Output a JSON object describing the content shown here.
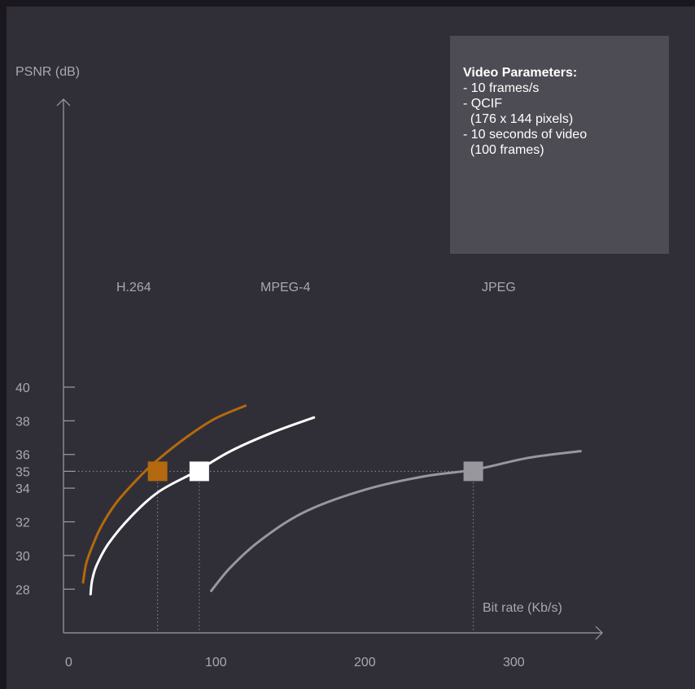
{
  "chart_data": {
    "type": "line",
    "ylabel": "PSNR (dB)",
    "xlabel": "Bit rate (Kb/s)",
    "xlim": [
      0,
      350
    ],
    "ylim": [
      26,
      42
    ],
    "x_ticks": [
      0,
      100,
      200,
      300
    ],
    "y_ticks": [
      28,
      30,
      32,
      34,
      35,
      36,
      38,
      40
    ],
    "reference_psnr": 35,
    "series": [
      {
        "name": "H.264",
        "color": "#b4690e",
        "points": [
          [
            11,
            28.4
          ],
          [
            13,
            29.5
          ],
          [
            17,
            30.5
          ],
          [
            23,
            31.7
          ],
          [
            33,
            33.1
          ],
          [
            47,
            34.5
          ],
          [
            60,
            35.6
          ],
          [
            80,
            37.0
          ],
          [
            99,
            38.1
          ],
          [
            120,
            38.9
          ]
        ],
        "marker": [
          61,
          35
        ]
      },
      {
        "name": "MPEG-4",
        "color": "#ffffff",
        "points": [
          [
            16,
            27.7
          ],
          [
            17,
            28.5
          ],
          [
            20,
            29.4
          ],
          [
            28,
            30.7
          ],
          [
            43,
            32.3
          ],
          [
            62,
            33.8
          ],
          [
            87,
            35.0
          ],
          [
            110,
            36.2
          ],
          [
            138,
            37.3
          ],
          [
            166,
            38.2
          ]
        ],
        "marker": [
          89,
          35
        ]
      },
      {
        "name": "JPEG",
        "color": "#98979d",
        "points": [
          [
            97,
            27.9
          ],
          [
            110,
            29.3
          ],
          [
            130,
            30.9
          ],
          [
            160,
            32.6
          ],
          [
            200,
            33.9
          ],
          [
            240,
            34.7
          ],
          [
            274,
            35.1
          ],
          [
            310,
            35.8
          ],
          [
            345,
            36.2
          ]
        ],
        "marker": [
          273,
          35
        ]
      }
    ]
  },
  "parameters": {
    "title": "Video Parameters:",
    "lines": [
      "- 10 frames/s",
      "- QCIF",
      "  (176 x 144 pixels)",
      "- 10 seconds of video",
      "  (100 frames)"
    ]
  }
}
